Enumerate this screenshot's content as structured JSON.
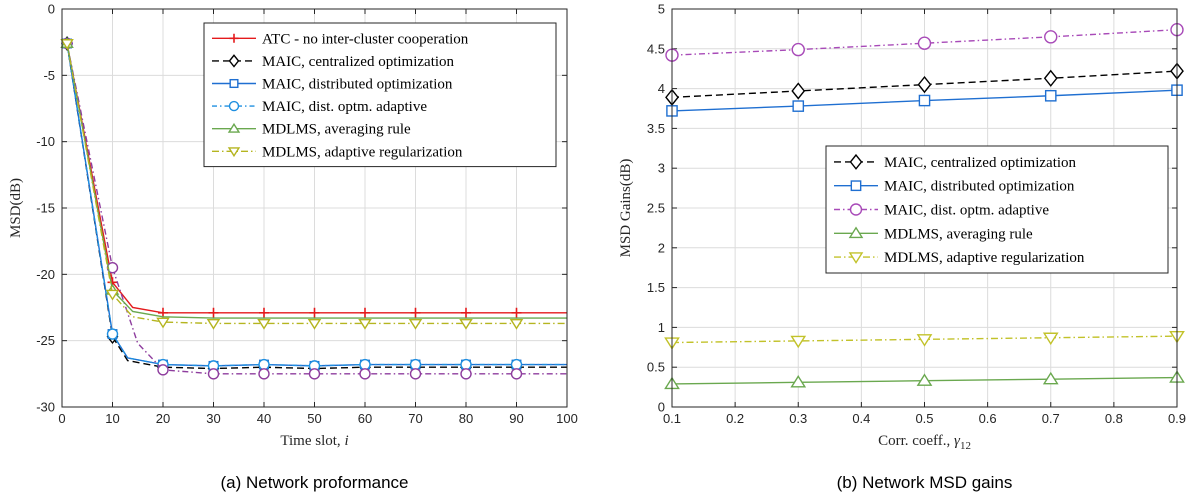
{
  "chart_data": [
    {
      "type": "line",
      "caption": "(a) Network proformance",
      "xlabel": "Time slot, ",
      "xlabel_italic": "i",
      "ylabel": "MSD(dB)",
      "xlim": [
        0,
        100
      ],
      "ylim": [
        -30,
        0
      ],
      "xticks": [
        0,
        10,
        20,
        30,
        40,
        50,
        60,
        70,
        80,
        90,
        100
      ],
      "yticks": [
        0,
        -5,
        -10,
        -15,
        -20,
        -25,
        -30
      ],
      "grid": true,
      "legend_position": "top-right",
      "series": [
        {
          "name": "ATC - no inter-cluster cooperation",
          "color": "#e41a1c",
          "dash": "",
          "marker": "plus",
          "x": [
            1,
            10,
            14,
            20,
            30,
            40,
            50,
            60,
            70,
            80,
            90,
            100
          ],
          "y": [
            -2.6,
            -20.6,
            -22.5,
            -22.9,
            -22.9,
            -22.9,
            -22.9,
            -22.9,
            -22.9,
            -22.9,
            -22.9,
            -22.9
          ],
          "marker_x": [
            1,
            10,
            20,
            30,
            40,
            50,
            60,
            70,
            80,
            90
          ]
        },
        {
          "name": "MAIC, centralized optimization",
          "color": "#000000",
          "dash": "7,4",
          "marker": "diamond",
          "x": [
            1,
            10,
            13,
            20,
            30,
            40,
            50,
            60,
            70,
            80,
            90,
            100
          ],
          "y": [
            -2.6,
            -24.7,
            -26.5,
            -27.0,
            -27.1,
            -27.0,
            -27.1,
            -27.0,
            -27.0,
            -27.0,
            -27.0,
            -27.0
          ],
          "marker_x": [
            1,
            10,
            20,
            30,
            40,
            50,
            60,
            70,
            80,
            90
          ]
        },
        {
          "name": "MAIC, distributed optimization",
          "color": "#1f6fd1",
          "dash": "",
          "marker": "square",
          "x": [
            1,
            10,
            13,
            20,
            30,
            40,
            50,
            60,
            70,
            80,
            90,
            100
          ],
          "y": [
            -2.6,
            -24.5,
            -26.3,
            -26.8,
            -26.9,
            -26.8,
            -26.9,
            -26.8,
            -26.8,
            -26.8,
            -26.8,
            -26.8
          ],
          "marker_x": [
            1,
            10,
            20,
            30,
            40,
            50,
            60,
            70,
            80,
            90
          ]
        },
        {
          "name": "MAIC, dist. optm. adaptive",
          "color": "#1f8fe0",
          "dash": "5,3,1.5,3",
          "marker": "circle",
          "x": [
            1,
            10,
            13,
            20,
            30,
            40,
            50,
            60,
            70,
            80,
            90,
            100
          ],
          "y": [
            -2.6,
            -24.5,
            -26.3,
            -26.8,
            -26.9,
            -26.8,
            -26.9,
            -26.8,
            -26.8,
            -26.8,
            -26.8,
            -26.8
          ],
          "marker_x": [
            1,
            10,
            20,
            30,
            40,
            50,
            60,
            70,
            80,
            90
          ]
        },
        {
          "name": "",
          "color": "#8e3d9e",
          "dash": "6,3,1.5,3",
          "marker": "circle",
          "x": [
            1,
            10,
            15,
            20,
            30,
            40,
            50,
            60,
            70,
            80,
            90,
            100
          ],
          "y": [
            -2.6,
            -19.5,
            -25.2,
            -27.2,
            -27.5,
            -27.5,
            -27.5,
            -27.5,
            -27.5,
            -27.5,
            -27.5,
            -27.5
          ],
          "marker_x": [
            1,
            10,
            20,
            30,
            40,
            50,
            60,
            70,
            80,
            90
          ]
        },
        {
          "name": "MDLMS, averaging rule",
          "color": "#6aa84f",
          "dash": "",
          "marker": "triangle-up",
          "x": [
            1,
            10,
            14,
            20,
            30,
            40,
            50,
            60,
            70,
            80,
            90,
            100
          ],
          "y": [
            -2.6,
            -21.2,
            -22.8,
            -23.2,
            -23.3,
            -23.3,
            -23.3,
            -23.3,
            -23.3,
            -23.3,
            -23.3,
            -23.3
          ],
          "marker_x": [
            1,
            10
          ]
        },
        {
          "name": "MDLMS, adaptive regularization",
          "color": "#b5b520",
          "dash": "7,3,1.5,3",
          "marker": "triangle-down",
          "x": [
            1,
            10,
            14,
            20,
            30,
            40,
            50,
            60,
            70,
            80,
            90,
            100
          ],
          "y": [
            -2.6,
            -21.5,
            -23.2,
            -23.6,
            -23.7,
            -23.7,
            -23.7,
            -23.7,
            -23.7,
            -23.7,
            -23.7,
            -23.7
          ],
          "marker_x": [
            1,
            10,
            20,
            30,
            40,
            50,
            60,
            70,
            80,
            90
          ]
        }
      ]
    },
    {
      "type": "line",
      "caption": "(b) Network MSD gains",
      "xlabel": "Corr. coeff., ",
      "xlabel_italic": "γ",
      "xlabel_sub": "12",
      "ylabel": "MSD Gains(dB)",
      "xlim": [
        0.1,
        0.9
      ],
      "ylim": [
        0,
        5
      ],
      "xticks": [
        0.1,
        0.2,
        0.3,
        0.4,
        0.5,
        0.6,
        0.7,
        0.8,
        0.9
      ],
      "yticks": [
        0,
        0.5,
        1,
        1.5,
        2,
        2.5,
        3,
        3.5,
        4,
        4.5,
        5
      ],
      "grid": true,
      "legend_position": "center-right",
      "series": [
        {
          "name": "MAIC, centralized optimization",
          "color": "#000000",
          "dash": "7,4",
          "marker": "diamond",
          "x": [
            0.1,
            0.3,
            0.5,
            0.7,
            0.9
          ],
          "y": [
            3.89,
            3.97,
            4.05,
            4.13,
            4.22
          ]
        },
        {
          "name": "MAIC, distributed optimization",
          "color": "#1f6fd1",
          "dash": "",
          "marker": "square",
          "x": [
            0.1,
            0.3,
            0.5,
            0.7,
            0.9
          ],
          "y": [
            3.72,
            3.78,
            3.85,
            3.91,
            3.98
          ]
        },
        {
          "name": "MAIC, dist. optm. adaptive",
          "color": "#a84ab8",
          "dash": "6,3,1.5,3",
          "marker": "circle",
          "x": [
            0.1,
            0.3,
            0.5,
            0.7,
            0.9
          ],
          "y": [
            4.42,
            4.49,
            4.57,
            4.65,
            4.74
          ]
        },
        {
          "name": "MDLMS, averaging rule",
          "color": "#6aa84f",
          "dash": "",
          "marker": "triangle-up",
          "x": [
            0.1,
            0.3,
            0.5,
            0.7,
            0.9
          ],
          "y": [
            0.29,
            0.31,
            0.33,
            0.35,
            0.37
          ]
        },
        {
          "name": "MDLMS, adaptive regularization",
          "color": "#c2c22a",
          "dash": "7,3,1.5,3",
          "marker": "triangle-down",
          "x": [
            0.1,
            0.3,
            0.5,
            0.7,
            0.9
          ],
          "y": [
            0.81,
            0.83,
            0.85,
            0.87,
            0.89
          ]
        }
      ]
    }
  ]
}
